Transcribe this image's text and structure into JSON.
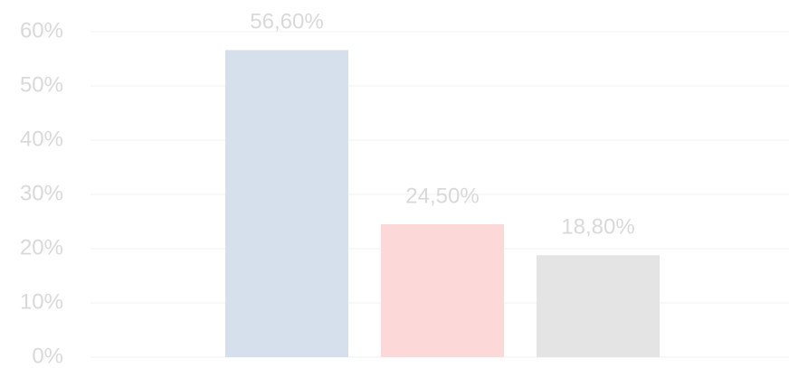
{
  "chart_data": {
    "type": "bar",
    "categories": [
      null,
      null,
      null
    ],
    "values": [
      56.6,
      24.5,
      18.8
    ],
    "value_labels": [
      "56,60%",
      "24,50%",
      "18,80%"
    ],
    "colors": [
      "#d6e0ed",
      "#fdd8d8",
      "#e4e4e4"
    ],
    "ylim": [
      0,
      60
    ],
    "yticks": [
      {
        "value": 0,
        "label": "0%"
      },
      {
        "value": 10,
        "label": "10%"
      },
      {
        "value": 20,
        "label": "20%"
      },
      {
        "value": 30,
        "label": "30%"
      },
      {
        "value": 40,
        "label": "40%"
      },
      {
        "value": 50,
        "label": "50%"
      },
      {
        "value": 60,
        "label": "60%"
      }
    ],
    "grid": true
  }
}
